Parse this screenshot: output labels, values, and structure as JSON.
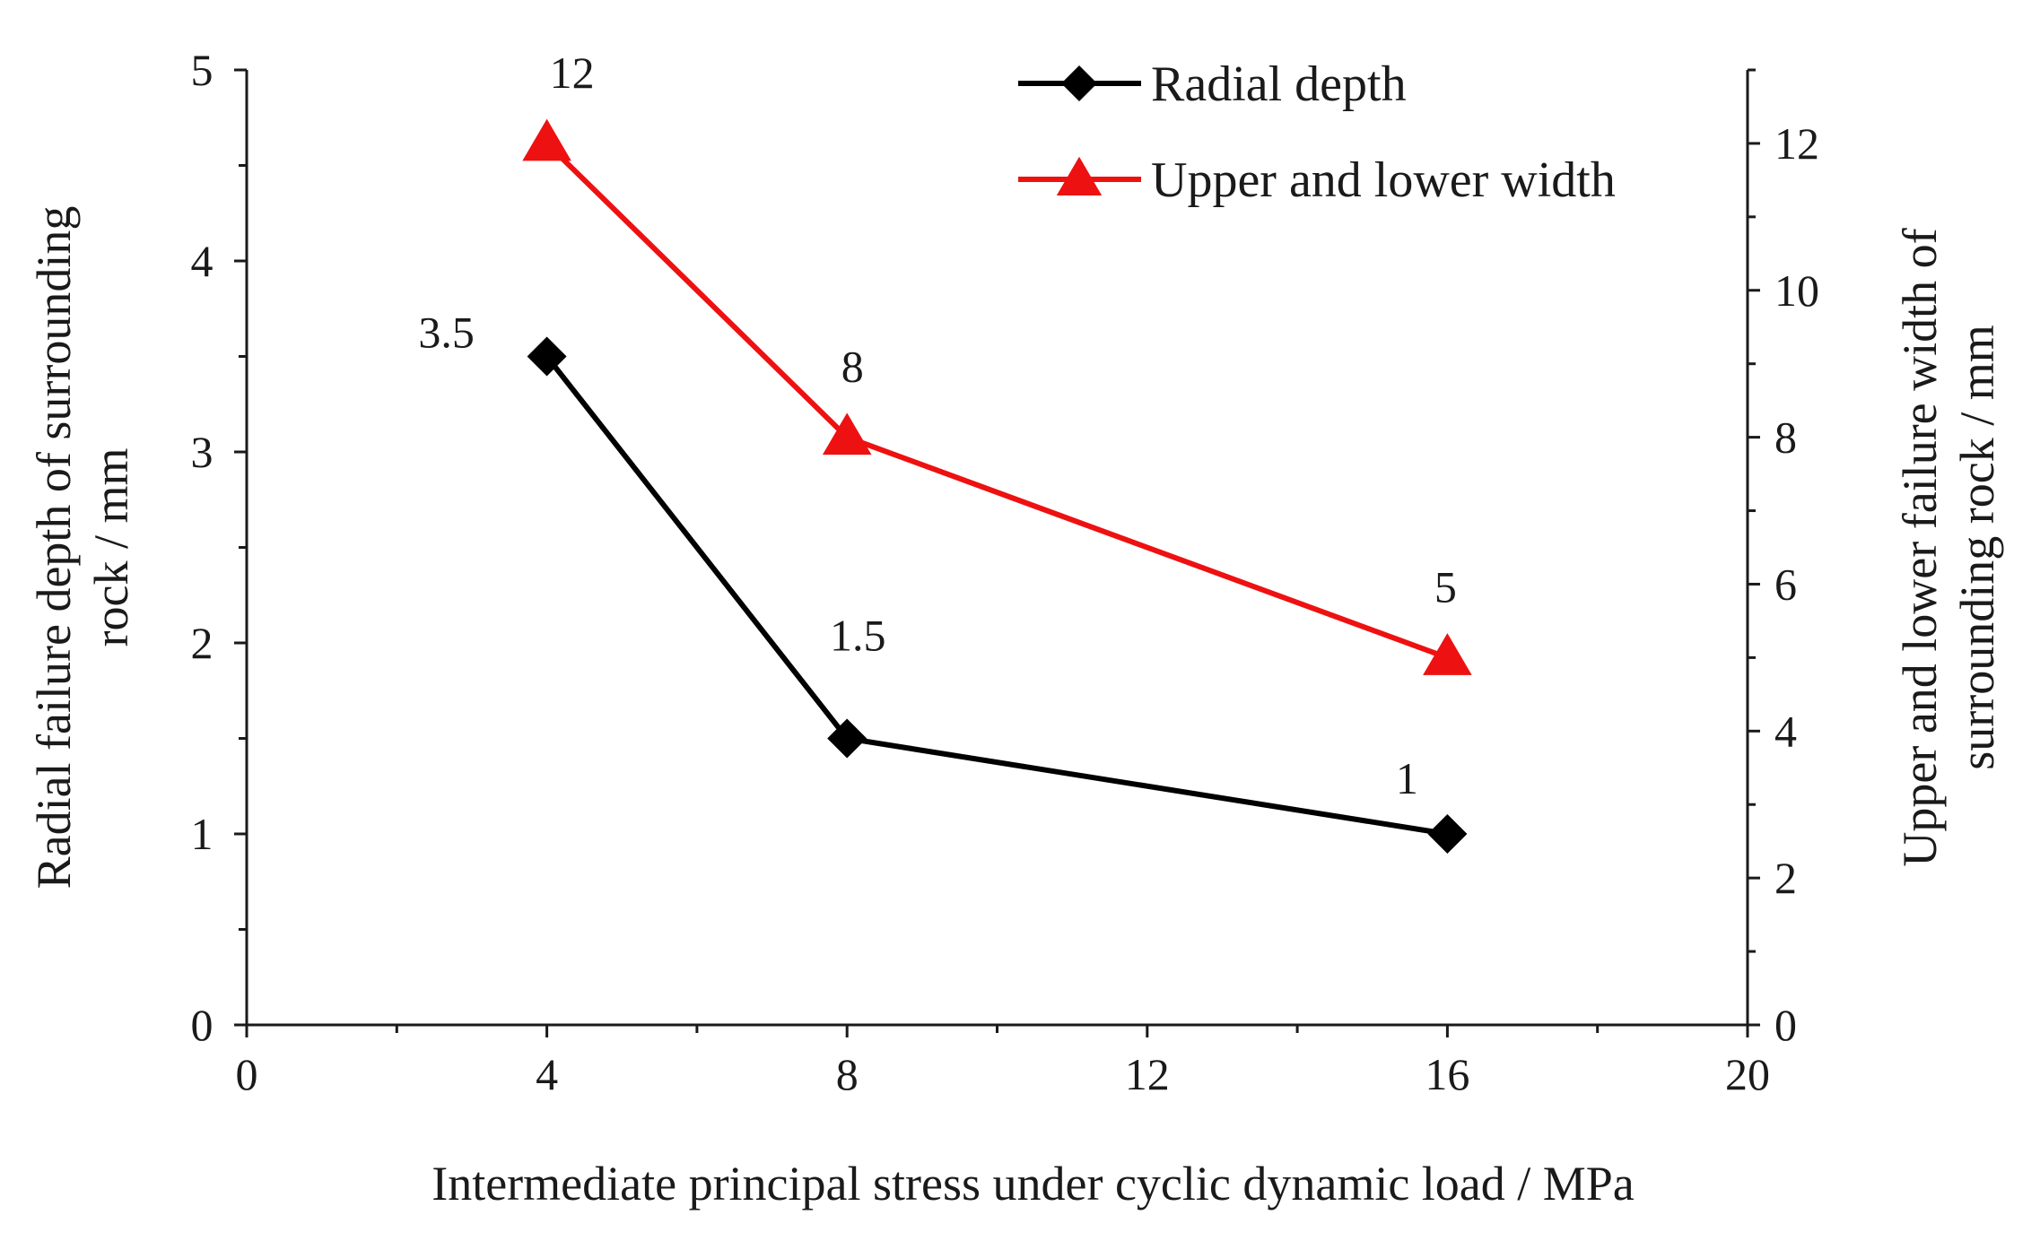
{
  "chart_data": {
    "type": "line",
    "title": "",
    "xlabel": "Intermediate principal stress under cyclic dynamic load / MPa",
    "ylabel_left": [
      "Radial failure depth of surrounding",
      "rock  / mm"
    ],
    "ylabel_right": [
      "Upper and lower failure width of",
      "surrounding rock / mm"
    ],
    "xlim": [
      0,
      20
    ],
    "ylim_left": [
      0,
      5
    ],
    "ylim_right": [
      0,
      13
    ],
    "x_ticks": [
      0,
      4,
      8,
      12,
      16,
      20
    ],
    "y_left_ticks": [
      0,
      1,
      2,
      3,
      4,
      5
    ],
    "y_right_ticks": [
      0,
      2,
      4,
      6,
      8,
      10,
      12
    ],
    "grid": false,
    "legend_position": "top-right",
    "series": [
      {
        "name": "Radial depth",
        "axis": "left",
        "color": "#000000",
        "marker": "diamond",
        "x": [
          4,
          8,
          16
        ],
        "y": [
          3.5,
          1.5,
          1
        ],
        "labels": [
          "3.5",
          "1.5",
          "1"
        ]
      },
      {
        "name": "Upper and lower width",
        "axis": "right",
        "color": "#ee1111",
        "marker": "triangle",
        "x": [
          4,
          8,
          16
        ],
        "y": [
          12,
          8,
          5
        ],
        "labels": [
          "12",
          "8",
          "5"
        ]
      }
    ]
  }
}
